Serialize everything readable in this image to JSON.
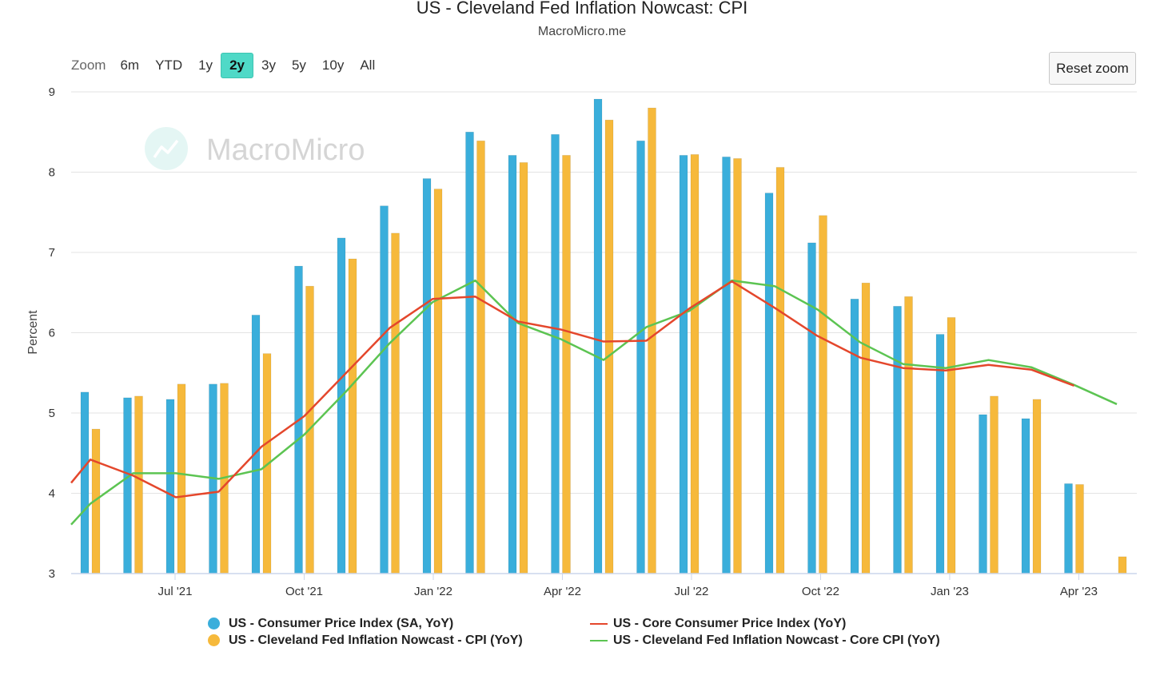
{
  "title": "US - Cleveland Fed Inflation Nowcast: CPI",
  "subtitle": "MacroMicro.me",
  "zoom": {
    "label": "Zoom",
    "buttons": [
      "6m",
      "YTD",
      "1y",
      "2y",
      "3y",
      "5y",
      "10y",
      "All"
    ],
    "active": "2y"
  },
  "reset_zoom_label": "Reset zoom",
  "watermark": "MacroMicro",
  "colors": {
    "cpi": "#3aaedb",
    "nowcast_cpi": "#f6b93b",
    "core_cpi": "#e4472c",
    "nowcast_core": "#5cc452"
  },
  "chart_data": {
    "type": "bar",
    "ylabel": "Percent",
    "ylim": [
      3,
      9
    ],
    "yticks": [
      "3",
      "4",
      "5",
      "6",
      "7",
      "8",
      "9"
    ],
    "grid": true,
    "legend_position": "bottom",
    "categories": [
      "May '21",
      "Jun '21",
      "Jul '21",
      "Aug '21",
      "Sep '21",
      "Oct '21",
      "Nov '21",
      "Dec '21",
      "Jan '22",
      "Feb '22",
      "Mar '22",
      "Apr '22",
      "May '22",
      "Jun '22",
      "Jul '22",
      "Aug '22",
      "Sep '22",
      "Oct '22",
      "Nov '22",
      "Dec '22",
      "Jan '23",
      "Feb '23",
      "Mar '23",
      "Apr '23",
      "May '23",
      "Jun '23"
    ],
    "xtick_labels": [
      {
        "label": "Jul '21",
        "index": 2
      },
      {
        "label": "Oct '21",
        "index": 5
      },
      {
        "label": "Jan '22",
        "index": 8
      },
      {
        "label": "Apr '22",
        "index": 11
      },
      {
        "label": "Jul '22",
        "index": 14
      },
      {
        "label": "Oct '22",
        "index": 17
      },
      {
        "label": "Jan '23",
        "index": 20
      },
      {
        "label": "Apr '23",
        "index": 23
      }
    ],
    "series": [
      {
        "name": "US - Consumer Price Index (SA, YoY)",
        "type": "bar",
        "values": [
          5.26,
          5.19,
          5.17,
          5.36,
          6.22,
          6.83,
          7.18,
          7.58,
          7.92,
          8.5,
          8.21,
          8.47,
          8.91,
          8.39,
          8.21,
          8.19,
          7.74,
          7.12,
          6.42,
          6.33,
          5.98,
          4.98,
          4.93,
          4.12,
          null,
          null
        ]
      },
      {
        "name": "US - Cleveland Fed Inflation Nowcast - CPI (YoY)",
        "type": "bar",
        "values": [
          4.8,
          5.21,
          5.36,
          5.37,
          5.74,
          6.58,
          6.92,
          7.24,
          7.79,
          8.39,
          8.12,
          8.21,
          8.65,
          8.8,
          8.22,
          8.17,
          8.06,
          7.46,
          6.62,
          6.45,
          6.19,
          5.21,
          5.17,
          4.11,
          3.21,
          null
        ]
      },
      {
        "name": "US - Core Consumer Price Index (YoY)",
        "type": "line",
        "lead_in": 4.13,
        "values": [
          4.42,
          4.22,
          3.95,
          4.02,
          4.58,
          4.96,
          5.51,
          6.06,
          6.42,
          6.45,
          6.14,
          6.04,
          5.89,
          5.9,
          6.3,
          6.64,
          6.31,
          5.96,
          5.69,
          5.56,
          5.53,
          5.6,
          5.54,
          5.34,
          null,
          null
        ]
      },
      {
        "name": "US - Cleveland Fed Inflation Nowcast - Core CPI (YoY)",
        "type": "line",
        "lead_in": 3.61,
        "values": [
          3.87,
          4.25,
          4.25,
          4.18,
          4.3,
          4.73,
          5.28,
          5.87,
          6.38,
          6.65,
          6.12,
          5.92,
          5.66,
          6.07,
          6.27,
          6.65,
          6.58,
          6.29,
          5.88,
          5.61,
          5.56,
          5.66,
          5.57,
          5.35,
          5.11,
          null
        ]
      }
    ]
  }
}
